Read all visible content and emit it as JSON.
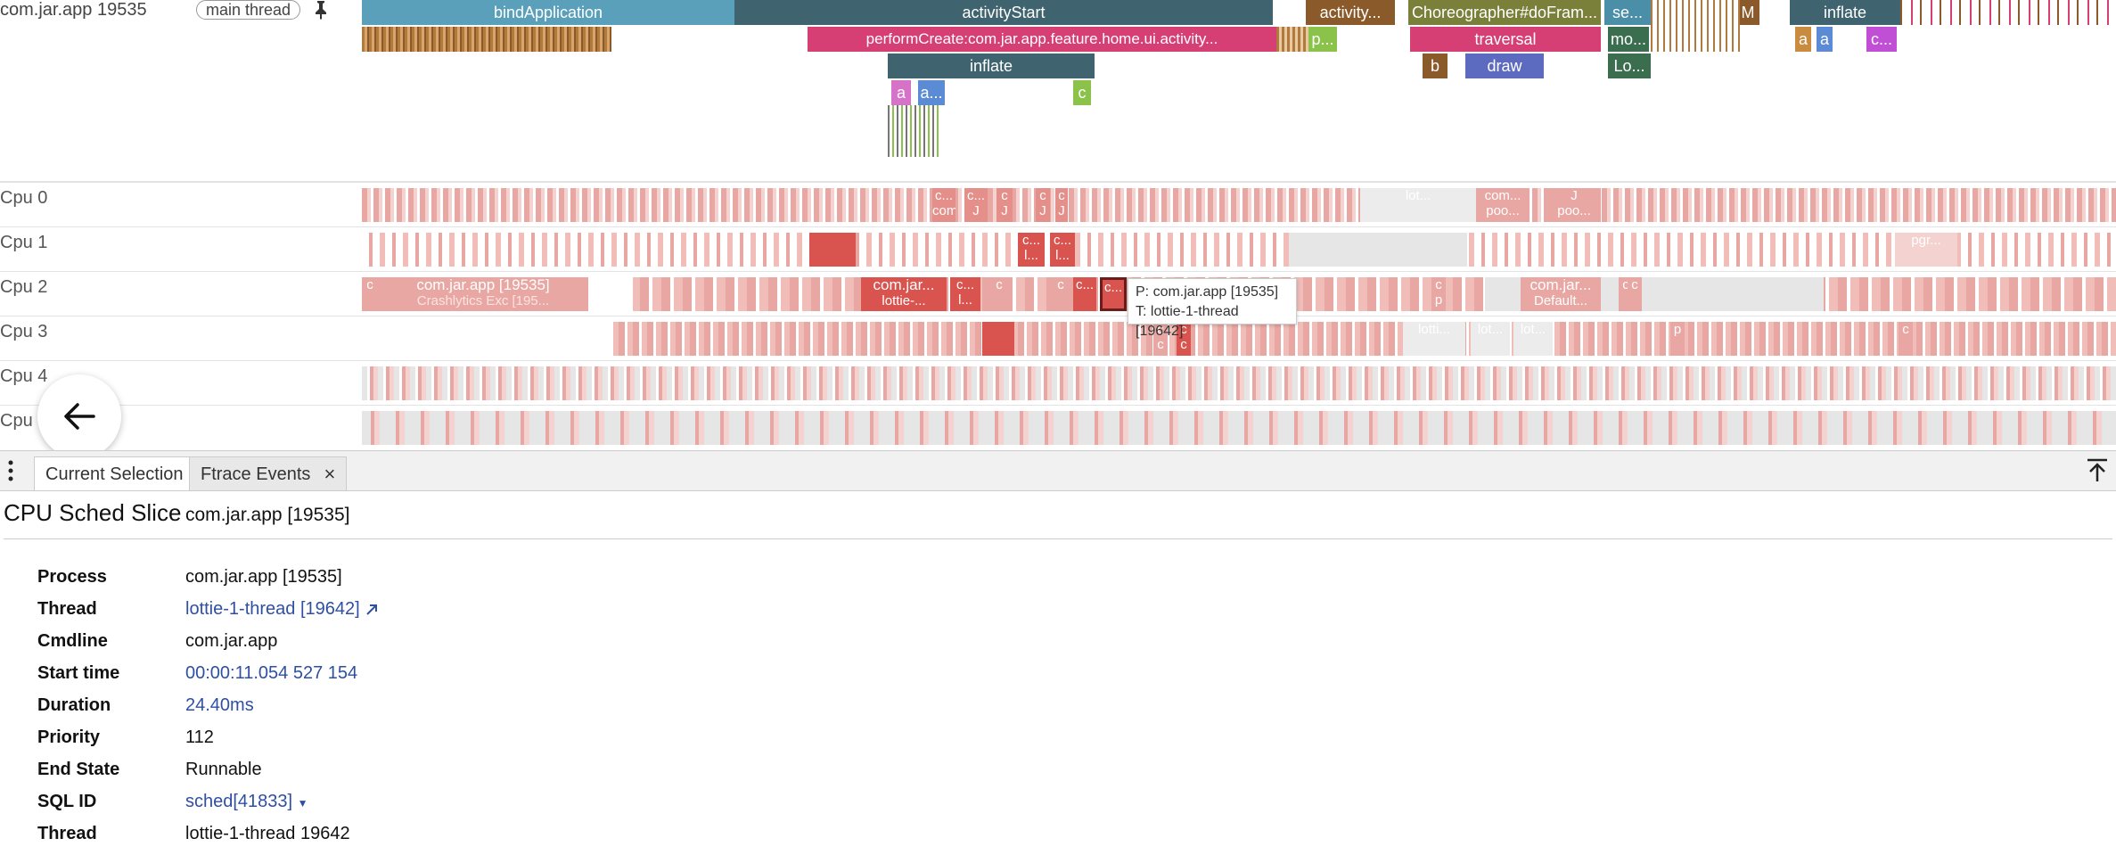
{
  "thread_track": {
    "title": "com.jar.app 19535",
    "chip": "main thread",
    "slices_row1": [
      "bindApplication",
      "activityStart",
      "activity...",
      "Choreographer#doFram...",
      "se...",
      "M",
      "inflate"
    ],
    "slices_row2": [
      "performCreate:com.jar.app.feature.home.ui.activity...",
      "p...",
      "traversal",
      "mo..."
    ],
    "slices_row3": [
      "inflate",
      "b",
      "draw",
      "Lo..."
    ],
    "slices_row4": [
      "a",
      "a...",
      "c"
    ],
    "slices_row5": [
      "a",
      "a",
      "c..."
    ]
  },
  "cpus": {
    "labels": [
      "Cpu 0",
      "Cpu 1",
      "Cpu 2",
      "Cpu 3",
      "Cpu 4",
      "Cpu 5"
    ],
    "cpu0_texts": [
      "c...",
      "c...",
      "c",
      "c",
      "c",
      "lot...",
      "com...",
      "com...",
      "J",
      "J",
      "J",
      "J",
      "J",
      "poo...",
      "poo..."
    ],
    "cpu1_texts": [
      "c...",
      "c...",
      "l...",
      "l...",
      "pgr..."
    ],
    "cpu2_texts": [
      "c",
      "com.jar.app [19535]",
      "Crashlytics Exc [195...",
      "com.jar...",
      "lottie-...",
      "c...",
      "l...",
      "c",
      "c",
      "c...",
      "c...",
      "c",
      "com.jar...",
      "Default...",
      "c",
      "c",
      "p"
    ],
    "cpu3_texts": [
      "lotti...",
      "lot...",
      "lot...",
      "c",
      "c",
      "c",
      "c",
      "p",
      "c"
    ]
  },
  "tooltip": {
    "process_line": "P: com.jar.app [19535]",
    "thread_line": "T: lottie-1-thread [19642]"
  },
  "tabs": {
    "current": "Current Selection",
    "ftrace": "Ftrace Events",
    "close": "×"
  },
  "detail": {
    "title": "CPU Sched Slice",
    "subtitle": "com.jar.app [19535]",
    "rows": [
      {
        "key": "Process",
        "value": "com.jar.app [19535]"
      },
      {
        "key": "Thread",
        "value": "lottie-1-thread [19642]"
      },
      {
        "key": "Cmdline",
        "value": "com.jar.app"
      },
      {
        "key": "Start time",
        "value": "00:00:11.054 527 154"
      },
      {
        "key": "Duration",
        "value": "24.40ms"
      },
      {
        "key": "Priority",
        "value": "112"
      },
      {
        "key": "End State",
        "value": "Runnable"
      },
      {
        "key": "SQL ID",
        "value": "sched[41833]"
      },
      {
        "key": "Thread",
        "value": "lottie-1-thread 19642"
      }
    ]
  },
  "colors": {
    "teal": "#4b8ea8",
    "dark_teal": "#3f6470",
    "pink": "#d63f73",
    "cpu_red": "#d9534f",
    "cpu_light": "#e9a7a3",
    "link": "#2e4fa3"
  }
}
